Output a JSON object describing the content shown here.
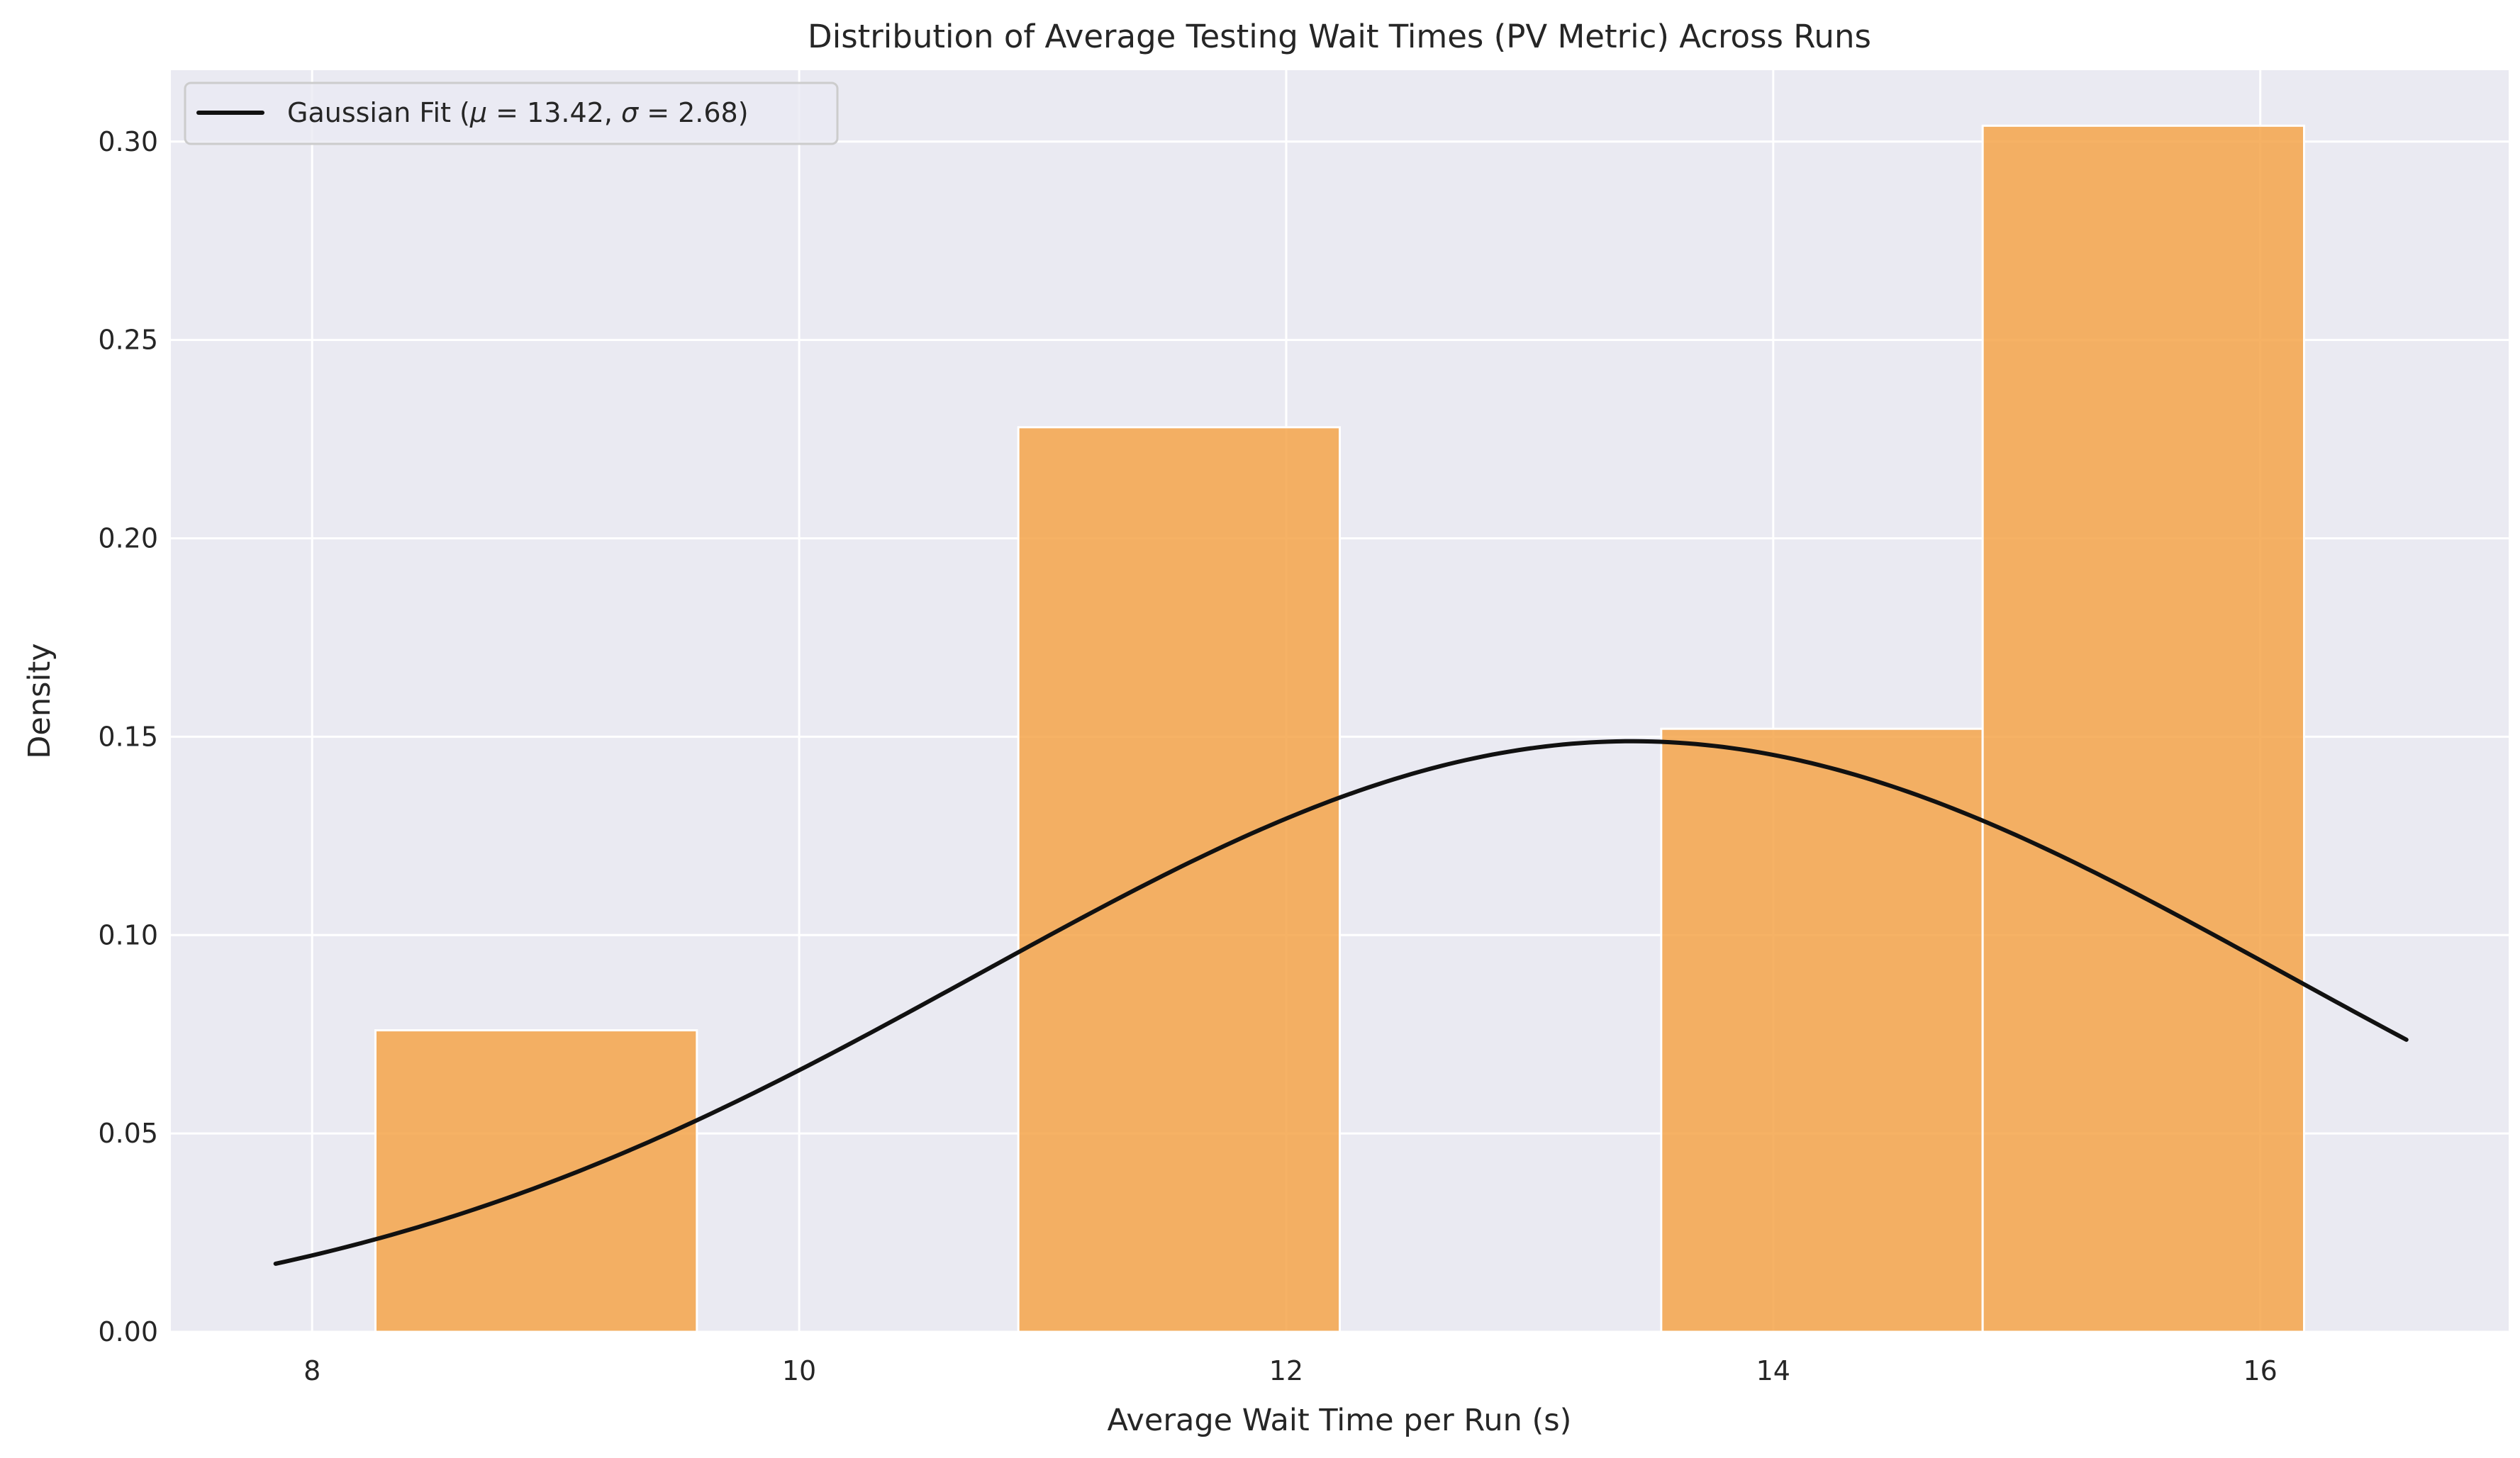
{
  "chart_data": {
    "type": "bar",
    "title": "Distribution of Average Testing Wait Times (PV Metric) Across Runs",
    "xlabel": "Average Wait Time per Run (s)",
    "ylabel": "Density",
    "xlim": [
      7.42,
      17.02
    ],
    "ylim": [
      0.0,
      0.318
    ],
    "xticks": [
      8,
      10,
      12,
      14,
      16
    ],
    "xtick_labels": [
      "8",
      "10",
      "12",
      "14",
      "16"
    ],
    "yticks": [
      0.0,
      0.05,
      0.1,
      0.15,
      0.2,
      0.25,
      0.3
    ],
    "ytick_labels": [
      "0.00",
      "0.05",
      "0.10",
      "0.15",
      "0.20",
      "0.25",
      "0.30"
    ],
    "grid": true,
    "legend_position": "top-left",
    "bar_color": "#f5a54a",
    "bins": [
      {
        "x0": 8.26,
        "x1": 9.58,
        "density": 0.076
      },
      {
        "x0": 9.58,
        "x1": 10.9,
        "density": 0.0
      },
      {
        "x0": 10.9,
        "x1": 12.22,
        "density": 0.228
      },
      {
        "x0": 12.22,
        "x1": 13.54,
        "density": 0.0
      },
      {
        "x0": 13.54,
        "x1": 14.86,
        "density": 0.152
      },
      {
        "x0": 14.86,
        "x1": 16.18,
        "density": 0.304
      }
    ],
    "fit": {
      "name": "Gaussian Fit ($\\mu = 13.42, \\sigma = 2.68$)",
      "legend_prefix": "Gaussian Fit (",
      "legend_mu": "μ",
      "legend_mu_eq": " = 13.42, ",
      "legend_sigma": "σ",
      "legend_sigma_eq": " = 2.68",
      "legend_suffix": ")",
      "mu": 13.42,
      "sigma": 2.68,
      "x_range": [
        7.85,
        16.6
      ],
      "color": "#111111"
    }
  }
}
